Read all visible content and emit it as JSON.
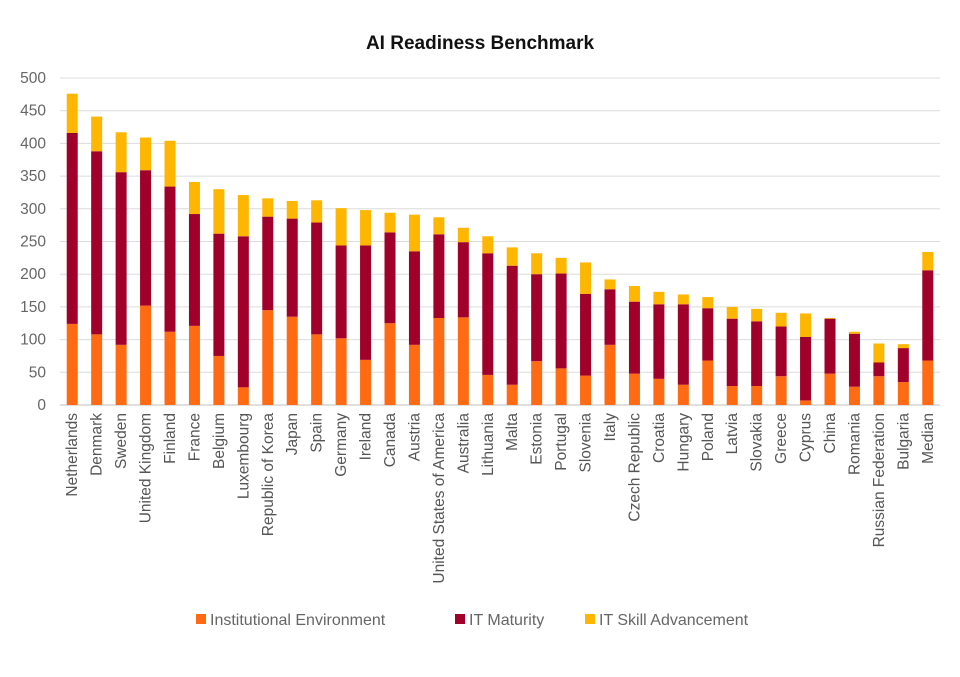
{
  "chart_data": {
    "type": "bar",
    "stacked": true,
    "title": "AI Readiness Benchmark",
    "xlabel": "",
    "ylabel": "",
    "ylim": [
      0,
      500
    ],
    "yticks": [
      0,
      50,
      100,
      150,
      200,
      250,
      300,
      350,
      400,
      450,
      500
    ],
    "grid": true,
    "legend_position": "bottom",
    "categories": [
      "Netherlands",
      "Denmark",
      "Sweden",
      "United Kingdom",
      "Finland",
      "France",
      "Belgium",
      "Luxembourg",
      "Republic of Korea",
      "Japan",
      "Spain",
      "Germany",
      "Ireland",
      "Canada",
      "Austria",
      "United States of America",
      "Australia",
      "Lithuania",
      "Malta",
      "Estonia",
      "Portugal",
      "Slovenia",
      "Italy",
      "Czech Republic",
      "Croatia",
      "Hungary",
      "Poland",
      "Latvia",
      "Slovakia",
      "Greece",
      "Cyprus",
      "China",
      "Romania",
      "Russian Federation",
      "Bulgaria",
      "Median"
    ],
    "series": [
      {
        "name": "Institutional Environment",
        "color": "#FF6A13",
        "values": [
          124,
          108,
          92,
          152,
          112,
          121,
          75,
          27,
          145,
          135,
          108,
          102,
          69,
          125,
          92,
          133,
          134,
          46,
          31,
          67,
          56,
          45,
          92,
          48,
          40,
          31,
          68,
          29,
          29,
          44,
          7,
          48,
          28,
          44,
          35,
          68
        ]
      },
      {
        "name": "IT Maturity",
        "color": "#A0002A",
        "values": [
          292,
          280,
          264,
          207,
          222,
          171,
          187,
          231,
          143,
          150,
          171,
          142,
          175,
          139,
          143,
          128,
          115,
          186,
          182,
          133,
          145,
          125,
          85,
          110,
          114,
          123,
          80,
          103,
          99,
          76,
          97,
          84,
          81,
          21,
          52,
          138
        ]
      },
      {
        "name": "IT Skill Advancement",
        "color": "#FFB600",
        "values": [
          60,
          53,
          61,
          50,
          70,
          49,
          68,
          63,
          28,
          27,
          34,
          57,
          54,
          30,
          56,
          26,
          22,
          26,
          28,
          32,
          24,
          48,
          15,
          24,
          19,
          15,
          17,
          18,
          19,
          21,
          36,
          1,
          3,
          29,
          6,
          28
        ]
      }
    ]
  }
}
